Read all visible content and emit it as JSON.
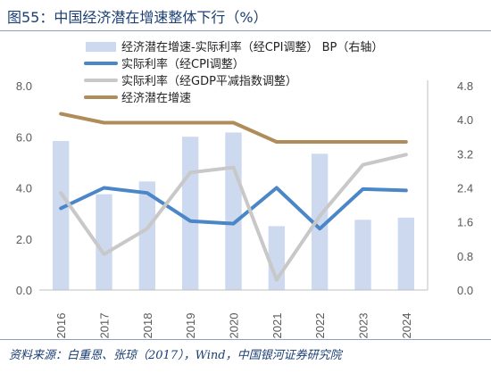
{
  "title": "图55：中国经济潜在增速整体下行（%）",
  "source": "资料来源：白重恩、张琼（2017），Wind，中国银河证券研究院",
  "chart_data": {
    "type": "bar",
    "categories": [
      "2016",
      "2017",
      "2018",
      "2019",
      "2020",
      "2021",
      "2022",
      "2023",
      "2024"
    ],
    "series": [
      {
        "name": "经济潜在增速-实际利率（经CPI调整） BP（右轴）",
        "kind": "bar",
        "axis": "right",
        "color": "#cdd9ee",
        "values": [
          3.5,
          2.25,
          2.55,
          3.6,
          3.7,
          1.5,
          3.2,
          1.65,
          1.7
        ]
      },
      {
        "name": "实际利率（经CPI调整）",
        "kind": "line",
        "axis": "left",
        "color": "#4a86c8",
        "values": [
          3.2,
          4.0,
          3.8,
          2.7,
          2.6,
          4.0,
          2.4,
          3.95,
          3.9
        ]
      },
      {
        "name": "实际利率（经GDP平减指数调整）",
        "kind": "line",
        "axis": "left",
        "color": "#c8c8c8",
        "values": [
          3.8,
          1.4,
          2.4,
          4.6,
          4.8,
          0.4,
          2.9,
          4.9,
          5.3
        ]
      },
      {
        "name": "经济潜在增速",
        "kind": "line",
        "axis": "left",
        "color": "#b08c5a",
        "values": [
          6.9,
          6.55,
          6.55,
          6.55,
          6.55,
          5.8,
          5.8,
          5.8,
          5.8
        ]
      }
    ],
    "left_axis": {
      "ticks": [
        "0.0",
        "2.0",
        "4.0",
        "6.0",
        "8.0"
      ],
      "ylim": [
        0,
        8
      ]
    },
    "right_axis": {
      "ticks": [
        "0.0",
        "0.8",
        "1.6",
        "2.4",
        "3.2",
        "4.0",
        "4.8"
      ],
      "ylim": [
        0,
        4.8
      ]
    },
    "grid": false,
    "legend_position": "top"
  }
}
